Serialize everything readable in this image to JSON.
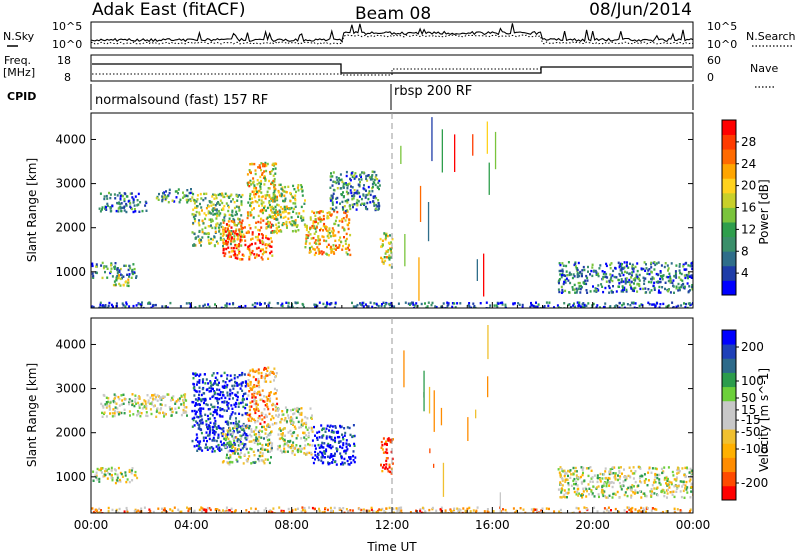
{
  "header": {
    "title": "Adak East (fitACF)",
    "beam": "Beam 08",
    "date": "08/Jun/2014"
  },
  "noise_panel": {
    "left_label": "N.Sky",
    "right_label": "N.Search",
    "left_ticks": [
      "10^5",
      "10^0"
    ],
    "right_ticks": [
      "10^5",
      "10^0"
    ]
  },
  "freq_panel": {
    "left_label_1": "Freq.",
    "left_label_2": "[MHz]",
    "left_ticks": [
      "18",
      "8"
    ],
    "right_label": "Nave",
    "right_ticks": [
      "60",
      "0"
    ]
  },
  "cpid_panel": {
    "label": "CPID",
    "program_1": "normalsound (fast) 157 RF",
    "program_2": "rbsp 200 RF"
  },
  "chart_data": [
    {
      "type": "heatmap",
      "title": "",
      "ylabel": "Slant Range [km]",
      "ylim": [
        180,
        4600
      ],
      "yticks": [
        1000,
        2000,
        3000,
        4000
      ],
      "xlabel": "",
      "xlim": [
        0,
        24
      ],
      "colorbar": {
        "label": "Power [dB]",
        "range": [
          0,
          32
        ],
        "ticks": [
          "28",
          "24",
          "20",
          "16",
          "12",
          "8",
          "4"
        ],
        "tick_values": [
          28,
          24,
          20,
          16,
          12,
          8,
          4
        ],
        "colors": [
          "#0000ff",
          "#1e3ca8",
          "#2f6e8a",
          "#3a8f6a",
          "#2e9e4c",
          "#7ac43c",
          "#c8d02a",
          "#ffd21e",
          "#ffa500",
          "#ff6a00",
          "#ff3b00",
          "#ff0000"
        ]
      },
      "regions": [
        {
          "x": [
            0.0,
            1.8
          ],
          "y": [
            880,
            1230
          ],
          "level": 0.28
        },
        {
          "x": [
            0.8,
            1.6
          ],
          "y": [
            700,
            950
          ],
          "level": 0.55
        },
        {
          "x": [
            0.3,
            2.2
          ],
          "y": [
            2380,
            2820
          ],
          "level": 0.2
        },
        {
          "x": [
            2.5,
            4.0
          ],
          "y": [
            2600,
            2900
          ],
          "level": 0.3
        },
        {
          "x": [
            4.0,
            6.0
          ],
          "y": [
            1600,
            2800
          ],
          "level": 0.45
        },
        {
          "x": [
            5.2,
            7.2
          ],
          "y": [
            1300,
            2200
          ],
          "level": 0.8
        },
        {
          "x": [
            6.2,
            7.4
          ],
          "y": [
            2200,
            3500
          ],
          "level": 0.6
        },
        {
          "x": [
            7.0,
            8.5
          ],
          "y": [
            1900,
            3000
          ],
          "level": 0.5
        },
        {
          "x": [
            8.5,
            10.3
          ],
          "y": [
            1400,
            2400
          ],
          "level": 0.65
        },
        {
          "x": [
            9.5,
            11.5
          ],
          "y": [
            2400,
            3300
          ],
          "level": 0.3
        },
        {
          "x": [
            11.5,
            12.0
          ],
          "y": [
            1100,
            1900
          ],
          "level": 0.55
        },
        {
          "x": [
            18.6,
            24.0
          ],
          "y": [
            550,
            1250
          ],
          "level": 0.25
        },
        {
          "x": [
            0.0,
            24.0
          ],
          "y": [
            180,
            330
          ],
          "level": 0.15
        }
      ]
    },
    {
      "type": "heatmap",
      "title": "",
      "ylabel": "Slant Range [km]",
      "ylim": [
        180,
        4600
      ],
      "yticks": [
        1000,
        2000,
        3000,
        4000
      ],
      "xlabel": "Time UT",
      "xlim": [
        0,
        24
      ],
      "xticks": [
        "00:00",
        "04:00",
        "08:00",
        "12:00",
        "16:00",
        "20:00",
        "00:00"
      ],
      "xtick_values": [
        0,
        4,
        8,
        12,
        16,
        20,
        24
      ],
      "colorbar": {
        "label": "Velocity [m s^-1]",
        "range": [
          -250,
          250
        ],
        "ticks": [
          "200",
          "100",
          "50",
          "15",
          "-15",
          "-50",
          "-100",
          "-200"
        ],
        "tick_values": [
          200,
          100,
          50,
          15,
          -15,
          -50,
          -100,
          -200
        ],
        "colors": [
          "#ff0000",
          "#ff4a00",
          "#ff8c00",
          "#ffb000",
          "#f0c030",
          "#c8c8c8",
          "#c8c8c8",
          "#6ccf3a",
          "#2c9c4c",
          "#2d6a8a",
          "#1e40b8",
          "#0000ff"
        ]
      },
      "regions": [
        {
          "x": [
            0.0,
            1.8
          ],
          "y": [
            880,
            1230
          ],
          "level": 0.5
        },
        {
          "x": [
            0.3,
            3.8
          ],
          "y": [
            2380,
            2900
          ],
          "level": 0.5
        },
        {
          "x": [
            4.0,
            6.2
          ],
          "y": [
            1600,
            3400
          ],
          "level": 0.95
        },
        {
          "x": [
            5.2,
            7.2
          ],
          "y": [
            1300,
            2200
          ],
          "level": 0.55
        },
        {
          "x": [
            6.2,
            7.4
          ],
          "y": [
            2200,
            3500
          ],
          "level": 0.3
        },
        {
          "x": [
            7.4,
            8.8
          ],
          "y": [
            1500,
            2600
          ],
          "level": 0.5
        },
        {
          "x": [
            8.8,
            10.5
          ],
          "y": [
            1300,
            2200
          ],
          "level": 0.95
        },
        {
          "x": [
            11.5,
            12.0
          ],
          "y": [
            1100,
            1900
          ],
          "level": 0.05
        },
        {
          "x": [
            18.6,
            24.0
          ],
          "y": [
            550,
            1250
          ],
          "level": 0.5
        },
        {
          "x": [
            0.0,
            24.0
          ],
          "y": [
            180,
            330
          ],
          "level": 0.3
        }
      ]
    }
  ]
}
